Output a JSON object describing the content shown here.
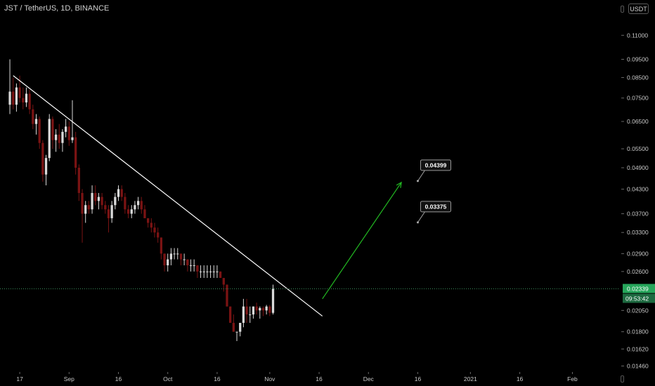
{
  "header": {
    "title": "JST / TetherUS, 1D, BINANCE",
    "currency": "USDT"
  },
  "colors": {
    "background": "#000000",
    "candle_up": "#d9d9d9",
    "candle_down": "#7a1313",
    "trendline": "#ffffff",
    "projection_arrow": "#22bb22",
    "price_label_bg": "#26a65b"
  },
  "icons": [
    "lock-icon"
  ],
  "chart_data": {
    "type": "candlestick",
    "title": "JST / TetherUS, 1D, BINANCE",
    "y_axis": {
      "scale": "log",
      "range": [
        0.0142,
        0.12
      ],
      "ticks": [
        "0.11000",
        "0.09500",
        "0.08500",
        "0.07500",
        "0.06500",
        "0.05500",
        "0.04900",
        "0.04300",
        "0.03700",
        "0.03300",
        "0.02900",
        "0.02600",
        "0.02050",
        "0.01800",
        "0.01620",
        "0.01460"
      ]
    },
    "x_axis": {
      "range": [
        "2020-08-11",
        "2021-02-15"
      ],
      "ticks": [
        {
          "date": "2020-08-17",
          "label": "17"
        },
        {
          "date": "2020-09-01",
          "label": "Sep"
        },
        {
          "date": "2020-09-16",
          "label": "16"
        },
        {
          "date": "2020-10-01",
          "label": "Oct"
        },
        {
          "date": "2020-10-16",
          "label": "16"
        },
        {
          "date": "2020-11-01",
          "label": "Nov"
        },
        {
          "date": "2020-11-16",
          "label": "16"
        },
        {
          "date": "2020-12-01",
          "label": "Dec"
        },
        {
          "date": "2020-12-16",
          "label": "16"
        },
        {
          "date": "2021-01-01",
          "label": "2021"
        },
        {
          "date": "2021-01-16",
          "label": "16"
        },
        {
          "date": "2021-02-01",
          "label": "Feb"
        }
      ]
    },
    "first_candle_date": "2020-08-14",
    "candles": [
      [
        0.072,
        0.095,
        0.068,
        0.078
      ],
      [
        0.078,
        0.085,
        0.07,
        0.072
      ],
      [
        0.072,
        0.082,
        0.069,
        0.08
      ],
      [
        0.08,
        0.086,
        0.073,
        0.075
      ],
      [
        0.075,
        0.08,
        0.07,
        0.073
      ],
      [
        0.073,
        0.08,
        0.071,
        0.077
      ],
      [
        0.077,
        0.079,
        0.068,
        0.07
      ],
      [
        0.07,
        0.072,
        0.062,
        0.064
      ],
      [
        0.064,
        0.068,
        0.06,
        0.066
      ],
      [
        0.066,
        0.067,
        0.055,
        0.057
      ],
      [
        0.057,
        0.058,
        0.045,
        0.047
      ],
      [
        0.047,
        0.053,
        0.044,
        0.052
      ],
      [
        0.052,
        0.068,
        0.051,
        0.066
      ],
      [
        0.066,
        0.067,
        0.055,
        0.058
      ],
      [
        0.058,
        0.062,
        0.054,
        0.06
      ],
      [
        0.06,
        0.064,
        0.055,
        0.057
      ],
      [
        0.057,
        0.062,
        0.054,
        0.061
      ],
      [
        0.061,
        0.066,
        0.059,
        0.063
      ],
      [
        0.063,
        0.065,
        0.056,
        0.058
      ],
      [
        0.058,
        0.074,
        0.057,
        0.059
      ],
      [
        0.059,
        0.061,
        0.047,
        0.049
      ],
      [
        0.049,
        0.05,
        0.04,
        0.042
      ],
      [
        0.042,
        0.043,
        0.031,
        0.037
      ],
      [
        0.037,
        0.04,
        0.035,
        0.039
      ],
      [
        0.039,
        0.04,
        0.037,
        0.038
      ],
      [
        0.038,
        0.044,
        0.037,
        0.042
      ],
      [
        0.042,
        0.044,
        0.039,
        0.04
      ],
      [
        0.04,
        0.042,
        0.038,
        0.041
      ],
      [
        0.041,
        0.042,
        0.038,
        0.039
      ],
      [
        0.039,
        0.04,
        0.037,
        0.038
      ],
      [
        0.038,
        0.039,
        0.033,
        0.036
      ],
      [
        0.036,
        0.04,
        0.035,
        0.039
      ],
      [
        0.039,
        0.042,
        0.038,
        0.041
      ],
      [
        0.041,
        0.044,
        0.04,
        0.043
      ],
      [
        0.043,
        0.044,
        0.04,
        0.041
      ],
      [
        0.041,
        0.042,
        0.037,
        0.038
      ],
      [
        0.038,
        0.039,
        0.036,
        0.037
      ],
      [
        0.037,
        0.039,
        0.036,
        0.038
      ],
      [
        0.038,
        0.04,
        0.037,
        0.039
      ],
      [
        0.039,
        0.041,
        0.038,
        0.04
      ],
      [
        0.04,
        0.041,
        0.037,
        0.038
      ],
      [
        0.038,
        0.039,
        0.036,
        0.036
      ],
      [
        0.036,
        0.036,
        0.034,
        0.035
      ],
      [
        0.035,
        0.036,
        0.033,
        0.034
      ],
      [
        0.034,
        0.035,
        0.032,
        0.033
      ],
      [
        0.033,
        0.034,
        0.031,
        0.032
      ],
      [
        0.032,
        0.032,
        0.028,
        0.029
      ],
      [
        0.029,
        0.029,
        0.026,
        0.027
      ],
      [
        0.027,
        0.029,
        0.026,
        0.028
      ],
      [
        0.028,
        0.03,
        0.027,
        0.029
      ],
      [
        0.029,
        0.03,
        0.028,
        0.029
      ],
      [
        0.029,
        0.03,
        0.028,
        0.029
      ],
      [
        0.029,
        0.029,
        0.027,
        0.028
      ],
      [
        0.028,
        0.029,
        0.027,
        0.028
      ],
      [
        0.028,
        0.028,
        0.026,
        0.027
      ],
      [
        0.027,
        0.028,
        0.026,
        0.027
      ],
      [
        0.027,
        0.028,
        0.026,
        0.027
      ],
      [
        0.027,
        0.027,
        0.025,
        0.026
      ],
      [
        0.026,
        0.027,
        0.025,
        0.026
      ],
      [
        0.026,
        0.027,
        0.025,
        0.026
      ],
      [
        0.026,
        0.027,
        0.025,
        0.026
      ],
      [
        0.026,
        0.027,
        0.025,
        0.026
      ],
      [
        0.026,
        0.027,
        0.025,
        0.026
      ],
      [
        0.026,
        0.027,
        0.025,
        0.026
      ],
      [
        0.026,
        0.026,
        0.025,
        0.025
      ],
      [
        0.025,
        0.025,
        0.023,
        0.024
      ],
      [
        0.024,
        0.024,
        0.021,
        0.021
      ],
      [
        0.021,
        0.021,
        0.019,
        0.019
      ],
      [
        0.019,
        0.02,
        0.018,
        0.018
      ],
      [
        0.018,
        0.018,
        0.017,
        0.018
      ],
      [
        0.018,
        0.019,
        0.0175,
        0.019
      ],
      [
        0.019,
        0.022,
        0.0185,
        0.021
      ],
      [
        0.021,
        0.022,
        0.019,
        0.02
      ],
      [
        0.02,
        0.021,
        0.019,
        0.02
      ],
      [
        0.02,
        0.021,
        0.0195,
        0.021
      ],
      [
        0.021,
        0.0215,
        0.02,
        0.0205
      ],
      [
        0.0205,
        0.021,
        0.0195,
        0.0208
      ],
      [
        0.0208,
        0.021,
        0.0198,
        0.0205
      ],
      [
        0.0205,
        0.0212,
        0.02,
        0.021
      ],
      [
        0.021,
        0.0212,
        0.0198,
        0.0202
      ],
      [
        0.0202,
        0.024,
        0.02,
        0.0234
      ]
    ],
    "trendline": {
      "from": {
        "date": "2020-08-15",
        "price": 0.086
      },
      "to": {
        "date": "2020-11-17",
        "price": 0.0198
      }
    },
    "projection": {
      "from": {
        "date": "2020-11-17",
        "price": 0.022
      },
      "to": {
        "date": "2020-12-11",
        "price": 0.0448
      }
    },
    "price_notes": [
      {
        "text": "0.04399",
        "date": "2020-12-16",
        "price": 0.0452
      },
      {
        "text": "0.03375",
        "date": "2020-12-16",
        "price": 0.0351
      }
    ],
    "last_price": {
      "value": "0.02339",
      "countdown": "09:53:42",
      "price": 0.02339
    }
  }
}
